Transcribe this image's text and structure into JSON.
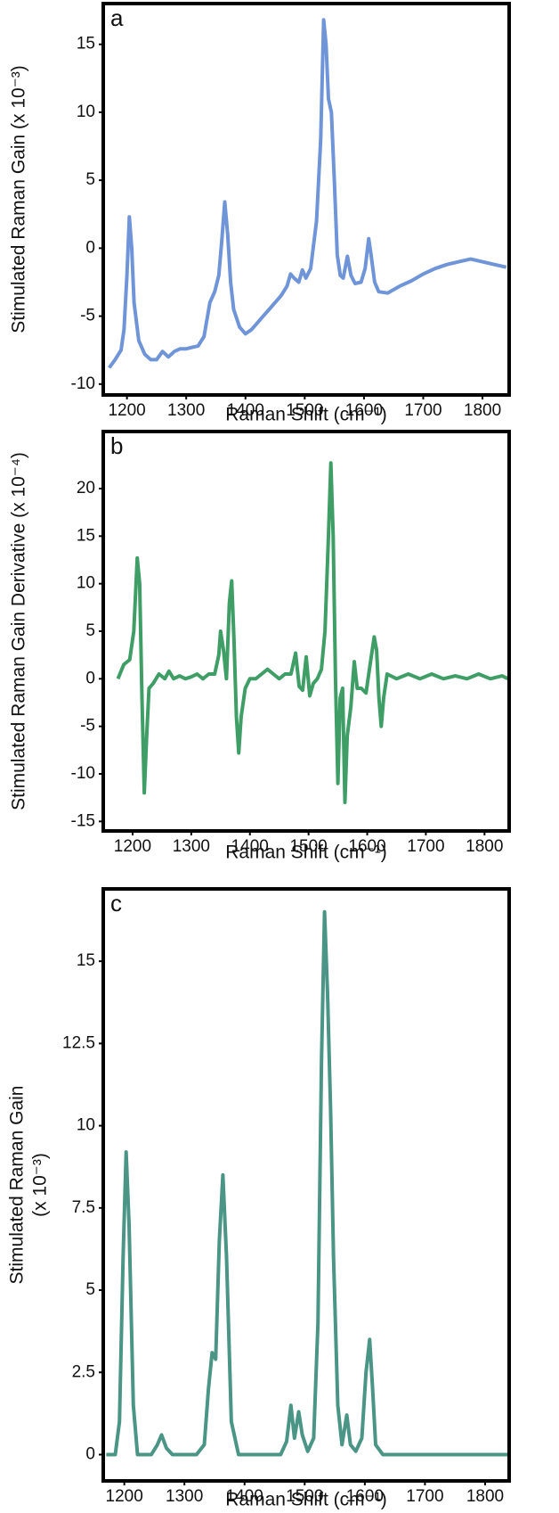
{
  "chart_data": [
    {
      "type": "line",
      "panel_label": "a",
      "x_label": "Raman Shift (cm⁻¹)",
      "y_label": "Stimulated Raman Gain (x 10⁻³)",
      "color": "#6f95d8",
      "xlim": [
        1160,
        1845
      ],
      "xticks": [
        1200,
        1300,
        1400,
        1500,
        1600,
        1700,
        1800
      ],
      "ylim": [
        -10.8,
        18
      ],
      "yticks": [
        -10,
        -5,
        0,
        5,
        10,
        15
      ],
      "x": [
        1170,
        1180,
        1190,
        1195,
        1200,
        1204,
        1208,
        1212,
        1220,
        1230,
        1240,
        1250,
        1260,
        1270,
        1280,
        1290,
        1300,
        1310,
        1320,
        1330,
        1340,
        1348,
        1355,
        1360,
        1365,
        1370,
        1375,
        1380,
        1390,
        1400,
        1410,
        1420,
        1430,
        1440,
        1450,
        1460,
        1470,
        1476,
        1482,
        1490,
        1496,
        1502,
        1510,
        1520,
        1527,
        1532,
        1536,
        1540,
        1545,
        1550,
        1555,
        1560,
        1565,
        1572,
        1578,
        1585,
        1595,
        1602,
        1608,
        1612,
        1618,
        1625,
        1640,
        1660,
        1680,
        1700,
        1720,
        1740,
        1760,
        1780,
        1800,
        1820,
        1840
      ],
      "values": [
        -8.8,
        -8.2,
        -7.5,
        -6,
        -2,
        2.3,
        0,
        -4,
        -6.8,
        -7.8,
        -8.2,
        -8.2,
        -7.6,
        -8,
        -7.6,
        -7.4,
        -7.4,
        -7.3,
        -7.2,
        -6.5,
        -4,
        -3.2,
        -2,
        0.5,
        3.4,
        1,
        -2.5,
        -4.5,
        -5.8,
        -6.3,
        -6,
        -5.5,
        -5,
        -4.5,
        -4,
        -3.5,
        -2.8,
        -1.9,
        -2.2,
        -2.5,
        -1.6,
        -2.2,
        -1.5,
        2,
        8,
        16.8,
        15,
        11,
        10,
        5,
        -0.5,
        -2,
        -2.2,
        -0.6,
        -2,
        -2.6,
        -2.5,
        -1.5,
        0.7,
        -0.5,
        -2.5,
        -3.2,
        -3.3,
        -2.8,
        -2.4,
        -1.9,
        -1.5,
        -1.2,
        -1,
        -0.8,
        -1,
        -1.2,
        -1.4
      ]
    },
    {
      "type": "line",
      "panel_label": "b",
      "x_label": "Raman Shift (cm⁻¹)",
      "y_label": "Stimulated Raman Gain Derivative (x 10⁻⁴)",
      "color": "#3f9e66",
      "xlim": [
        1150,
        1842
      ],
      "xticks": [
        1200,
        1300,
        1400,
        1500,
        1600,
        1700,
        1800
      ],
      "ylim": [
        -16,
        26
      ],
      "yticks": [
        -15,
        -10,
        -5,
        0,
        5,
        10,
        15,
        20
      ],
      "x": [
        1175,
        1185,
        1195,
        1202,
        1208,
        1212,
        1216,
        1220,
        1224,
        1228,
        1235,
        1245,
        1255,
        1262,
        1270,
        1280,
        1290,
        1300,
        1310,
        1320,
        1330,
        1340,
        1347,
        1350,
        1355,
        1360,
        1365,
        1369,
        1373,
        1377,
        1381,
        1385,
        1392,
        1400,
        1410,
        1420,
        1430,
        1440,
        1450,
        1460,
        1470,
        1478,
        1484,
        1490,
        1496,
        1502,
        1508,
        1515,
        1522,
        1528,
        1534,
        1538,
        1542,
        1546,
        1550,
        1554,
        1558,
        1562,
        1566,
        1572,
        1578,
        1583,
        1590,
        1598,
        1605,
        1612,
        1616,
        1620,
        1624,
        1628,
        1634,
        1650,
        1670,
        1690,
        1710,
        1730,
        1750,
        1770,
        1790,
        1810,
        1830,
        1840
      ],
      "values": [
        0,
        1.5,
        2,
        5,
        12.7,
        10,
        -2,
        -12,
        -6,
        -1,
        -0.5,
        0.5,
        0,
        0.8,
        0,
        0.3,
        0,
        0.2,
        0.5,
        0,
        0.5,
        0.5,
        2.5,
        5,
        3,
        0,
        8,
        10.3,
        4,
        -4,
        -7.8,
        -4,
        -1,
        0,
        0,
        0.5,
        1,
        0.5,
        0,
        0.5,
        0.5,
        2.7,
        -0.8,
        -1.2,
        2.3,
        -1.8,
        -0.5,
        0,
        1,
        5,
        15,
        22.7,
        15,
        0,
        -11,
        -2,
        -1,
        -13,
        -6,
        -3,
        1.8,
        -1,
        -1,
        -1.5,
        1.5,
        4.4,
        3,
        -2,
        -5,
        -2,
        0.5,
        0,
        0.5,
        0,
        0.5,
        0,
        0.3,
        0,
        0.5,
        0,
        0.3,
        0
      ]
    },
    {
      "type": "line",
      "panel_label": "c",
      "x_label": "Raman Shift (cm⁻¹)",
      "y_label": [
        "Stimulated Raman Gain",
        "(x 10⁻³)"
      ],
      "color": "#4a9585",
      "xlim": [
        1165,
        1840
      ],
      "xticks": [
        1200,
        1300,
        1400,
        1500,
        1600,
        1700,
        1800
      ],
      "ylim": [
        -0.8,
        17.2
      ],
      "yticks": [
        0,
        2.5,
        5,
        7.5,
        10,
        12.5,
        15
      ],
      "x": [
        1170,
        1185,
        1192,
        1198,
        1203,
        1208,
        1215,
        1222,
        1245,
        1255,
        1262,
        1270,
        1280,
        1320,
        1333,
        1340,
        1346,
        1352,
        1358,
        1364,
        1370,
        1378,
        1390,
        1460,
        1470,
        1477,
        1483,
        1490,
        1496,
        1505,
        1515,
        1522,
        1528,
        1533,
        1538,
        1543,
        1548,
        1555,
        1562,
        1570,
        1576,
        1585,
        1595,
        1602,
        1608,
        1613,
        1618,
        1630,
        1840
      ],
      "values": [
        0,
        0,
        1,
        6,
        9.2,
        7,
        1.5,
        0,
        0,
        0.3,
        0.6,
        0.2,
        0,
        0,
        0.3,
        2,
        3.1,
        2.9,
        6.5,
        8.5,
        6,
        1,
        0,
        0,
        0.4,
        1.5,
        0.5,
        1.3,
        0.6,
        0.1,
        0.5,
        4,
        12,
        16.5,
        14,
        10.5,
        6,
        1.5,
        0.3,
        1.2,
        0.3,
        0.1,
        0.5,
        2.5,
        3.5,
        2,
        0.3,
        0,
        0
      ]
    }
  ]
}
